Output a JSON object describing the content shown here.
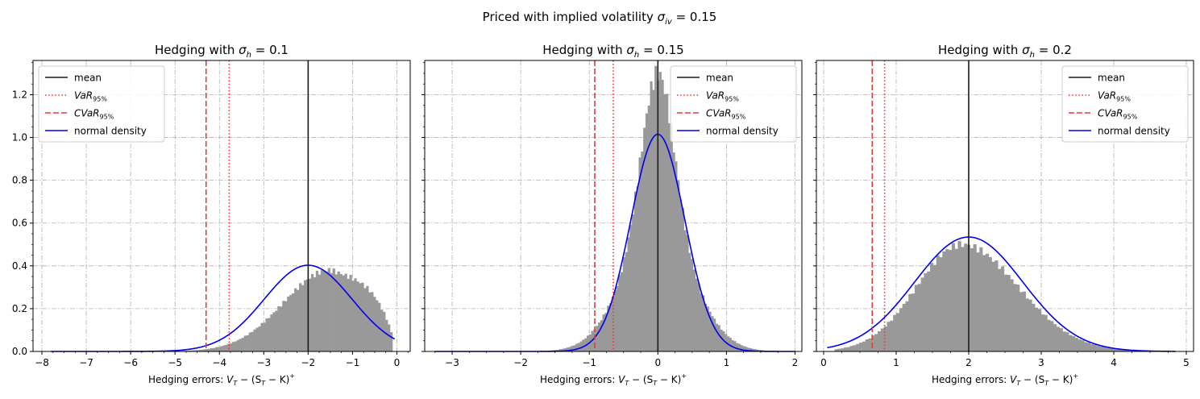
{
  "figure": {
    "suptitle_text": "Priced with implied volatility ",
    "suptitle_math": "σ",
    "suptitle_sub": "iv",
    "suptitle_value": " = 0.15"
  },
  "legend": {
    "mean": "mean",
    "var_main": "VaR",
    "var_sub": "95%",
    "cvar_main": "CVaR",
    "cvar_sub": "95%",
    "normal": "normal density"
  },
  "colors": {
    "histogram": "#999999",
    "mean": "#1a1a1a",
    "var": "#ff2a2a",
    "cvar": "#e83838",
    "normal": "#0000ee",
    "grid": "#b0b0b0"
  },
  "chart_data": [
    {
      "type": "histogram",
      "title_text": "Hedging with ",
      "title_math": "σ",
      "title_sub": "h",
      "title_value": " = 0.1",
      "xlabel_text": "Hedging errors: ",
      "xlabel_math": "V",
      "xlabel_math_sub": "T",
      "xlabel_rest": " − (S",
      "xlabel_rest_sub": "T",
      "xlabel_tail": " − K)",
      "xlabel_sup": "+",
      "xlim": [
        -8.2,
        0.3
      ],
      "ylim": [
        0,
        1.36
      ],
      "xticks": [
        -8,
        -7,
        -6,
        -5,
        -4,
        -3,
        -2,
        -1,
        0
      ],
      "yticks": [
        0.0,
        0.2,
        0.4,
        0.6,
        0.8,
        1.0,
        1.2
      ],
      "show_yticklabels": true,
      "grid": true,
      "legend_position": "upper left",
      "mean": -2.0,
      "var95": -3.78,
      "cvar95": -4.3,
      "normal": {
        "mu": -2.0,
        "sigma": 0.99,
        "x_range": [
          -7.8,
          -0.05
        ]
      },
      "hist": {
        "range": [
          -5.5,
          -0.1
        ],
        "shape": "left-skewed",
        "peak": 0.38,
        "peak_at": -1.5
      }
    },
    {
      "type": "histogram",
      "title_text": "Hedging with ",
      "title_math": "σ",
      "title_sub": "h",
      "title_value": " = 0.15",
      "xlabel_text": "Hedging errors: ",
      "xlabel_math": "V",
      "xlabel_math_sub": "T",
      "xlabel_rest": " − (S",
      "xlabel_rest_sub": "T",
      "xlabel_tail": " − K)",
      "xlabel_sup": "+",
      "xlim": [
        -3.4,
        2.1
      ],
      "ylim": [
        0,
        1.36
      ],
      "xticks": [
        -3,
        -2,
        -1,
        0,
        1,
        2
      ],
      "yticks": [
        0.0,
        0.2,
        0.4,
        0.6,
        0.8,
        1.0,
        1.2
      ],
      "show_yticklabels": false,
      "grid": true,
      "legend_position": "upper right",
      "mean": 0.0,
      "var95": -0.65,
      "cvar95": -0.92,
      "normal": {
        "mu": 0.0,
        "sigma": 0.393,
        "x_range": [
          -3.25,
          2.0
        ]
      },
      "hist": {
        "range": [
          -1.6,
          1.7
        ],
        "shape": "peaked",
        "peak": 1.3,
        "peak_at": 0.0
      }
    },
    {
      "type": "histogram",
      "title_text": "Hedging with ",
      "title_math": "σ",
      "title_sub": "h",
      "title_value": " = 0.2",
      "xlabel_text": "Hedging errors: ",
      "xlabel_math": "V",
      "xlabel_math_sub": "T",
      "xlabel_rest": " − (S",
      "xlabel_rest_sub": "T",
      "xlabel_tail": " − K)",
      "xlabel_sup": "+",
      "xlim": [
        -0.1,
        5.1
      ],
      "ylim": [
        0,
        1.36
      ],
      "xticks": [
        0,
        1,
        2,
        3,
        4,
        5
      ],
      "yticks": [
        0.0,
        0.2,
        0.4,
        0.6,
        0.8,
        1.0,
        1.2
      ],
      "show_yticklabels": false,
      "grid": true,
      "legend_position": "upper right",
      "mean": 2.0,
      "var95": 0.84,
      "cvar95": 0.67,
      "normal": {
        "mu": 2.0,
        "sigma": 0.746,
        "x_range": [
          0.05,
          4.85
        ]
      },
      "hist": {
        "range": [
          0.15,
          4.4
        ],
        "shape": "right-skewed",
        "peak": 0.5,
        "peak_at": 1.9
      }
    }
  ]
}
